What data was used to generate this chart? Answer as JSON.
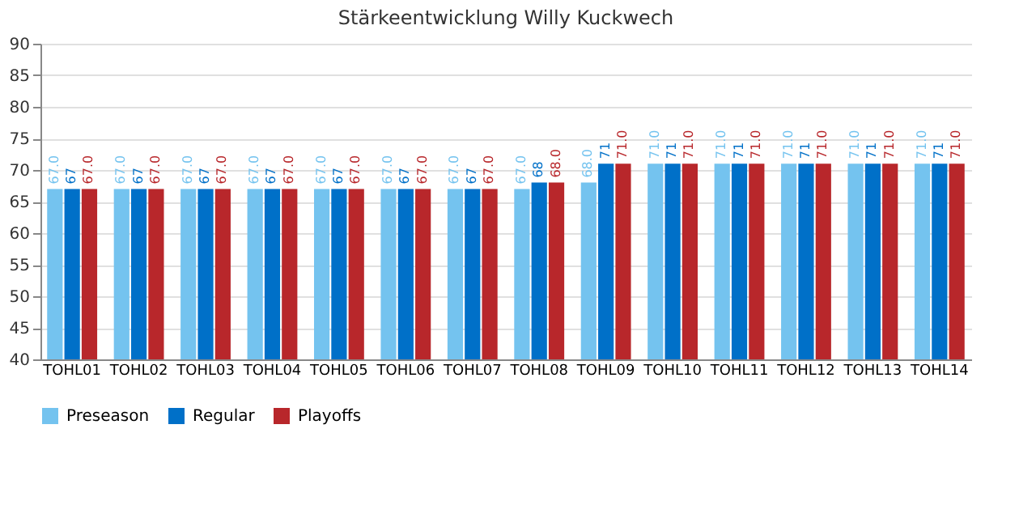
{
  "chart_data": {
    "type": "bar",
    "title": "Stärkeentwicklung Willy Kuckwech",
    "categories": [
      "TOHL01",
      "TOHL02",
      "TOHL03",
      "TOHL04",
      "TOHL05",
      "TOHL06",
      "TOHL07",
      "TOHL08",
      "TOHL09",
      "TOHL10",
      "TOHL11",
      "TOHL12",
      "TOHL13",
      "TOHL14"
    ],
    "series": [
      {
        "name": "Preseason",
        "color": "#74c3ef",
        "values": [
          67,
          67,
          67,
          67,
          67,
          67,
          67,
          67,
          68,
          71,
          71,
          71,
          71,
          71
        ],
        "value_labels": [
          "67.0",
          "67.0",
          "67.0",
          "67.0",
          "67.0",
          "67.0",
          "67.0",
          "67.0",
          "68.0",
          "71.0",
          "71.0",
          "71.0",
          "71.0",
          "71.0"
        ]
      },
      {
        "name": "Regular",
        "color": "#0070c8",
        "values": [
          67,
          67,
          67,
          67,
          67,
          67,
          67,
          68,
          71,
          71,
          71,
          71,
          71,
          71
        ],
        "value_labels": [
          "67",
          "67",
          "67",
          "67",
          "67",
          "67",
          "67",
          "68",
          "71",
          "71",
          "71",
          "71",
          "71",
          "71"
        ]
      },
      {
        "name": "Playoffs",
        "color": "#b8272b",
        "values": [
          67,
          67,
          67,
          67,
          67,
          67,
          67,
          68,
          71,
          71,
          71,
          71,
          71,
          71
        ],
        "value_labels": [
          "67.0",
          "67.0",
          "67.0",
          "67.0",
          "67.0",
          "67.0",
          "67.0",
          "68.0",
          "71.0",
          "71.0",
          "71.0",
          "71.0",
          "71.0",
          "71.0"
        ]
      }
    ],
    "ylim": [
      40,
      90
    ],
    "yticks": [
      40,
      45,
      50,
      55,
      60,
      65,
      70,
      75,
      80,
      85,
      90
    ],
    "grid": "y",
    "legend": "bottom"
  }
}
